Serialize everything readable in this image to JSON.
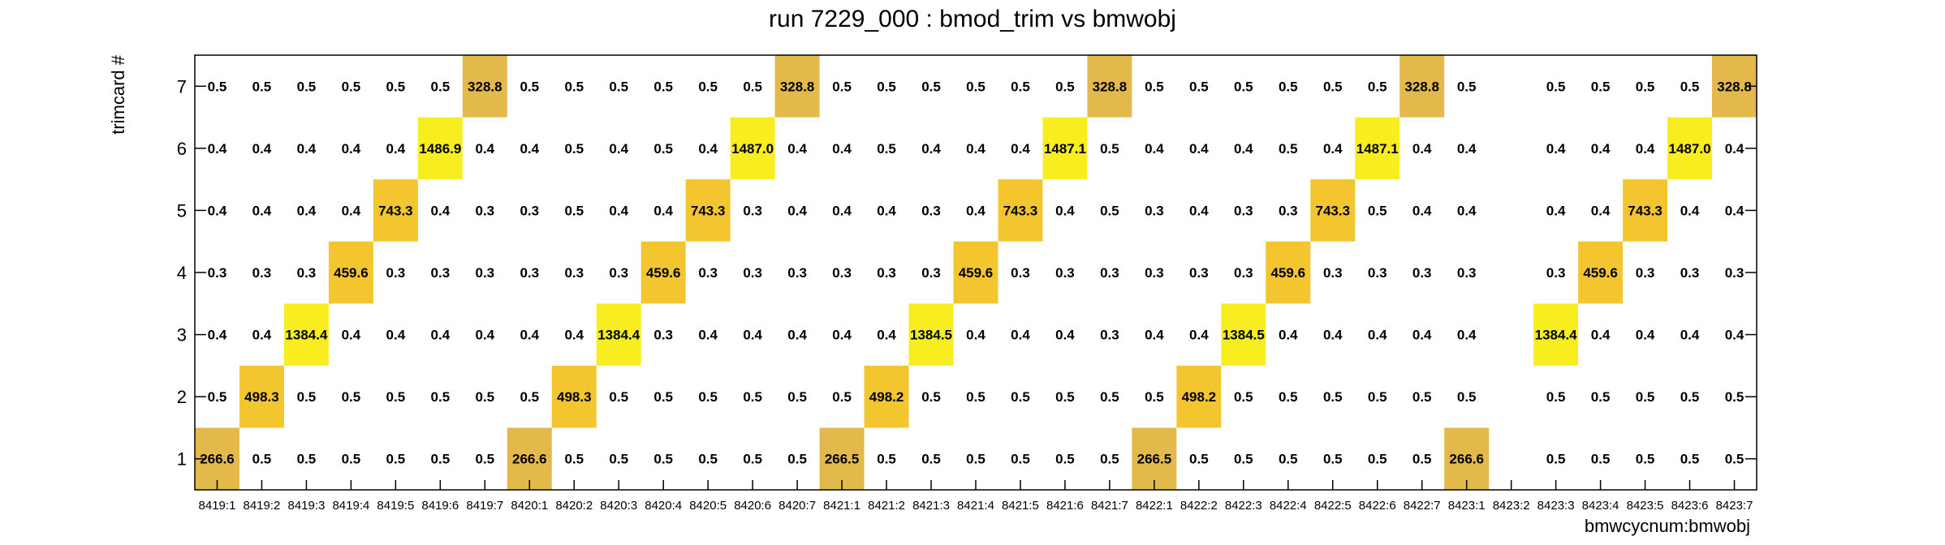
{
  "chart_data": {
    "type": "heatmap",
    "title": "run 7229_000 : bmod_trim vs bmwobj",
    "xlabel": "bmwcycnum:bmwobj",
    "ylabel": "trimcard #",
    "x_categories": [
      "8419:1",
      "8419:2",
      "8419:3",
      "8419:4",
      "8419:5",
      "8419:6",
      "8419:7",
      "8420:1",
      "8420:2",
      "8420:3",
      "8420:4",
      "8420:5",
      "8420:6",
      "8420:7",
      "8421:1",
      "8421:2",
      "8421:3",
      "8421:4",
      "8421:5",
      "8421:6",
      "8421:7",
      "8422:1",
      "8422:2",
      "8422:3",
      "8422:4",
      "8422:5",
      "8422:6",
      "8422:7",
      "8423:1",
      "8423:2",
      "8423:3",
      "8423:4",
      "8423:5",
      "8423:6",
      "8423:7"
    ],
    "y_categories": [
      "1",
      "2",
      "3",
      "4",
      "5",
      "6",
      "7"
    ],
    "grid": false,
    "colors": {
      "low": "#e2b94a",
      "mid": "#f3c52e",
      "high": "#f8ed1f",
      "frame": "#000000"
    },
    "values": [
      [
        "266.6",
        "0.5",
        "0.5",
        "0.5",
        "0.5",
        "0.5",
        "0.5",
        "266.6",
        "0.5",
        "0.5",
        "0.5",
        "0.5",
        "0.5",
        "0.5",
        "266.5",
        "0.5",
        "0.5",
        "0.5",
        "0.5",
        "0.5",
        "0.5",
        "266.5",
        "0.5",
        "0.5",
        "0.5",
        "0.5",
        "0.5",
        "0.5",
        "266.6",
        null,
        "0.5",
        "0.5",
        "0.5",
        "0.5",
        "0.5"
      ],
      [
        "0.5",
        "498.3",
        "0.5",
        "0.5",
        "0.5",
        "0.5",
        "0.5",
        "0.5",
        "498.3",
        "0.5",
        "0.5",
        "0.5",
        "0.5",
        "0.5",
        "0.5",
        "498.2",
        "0.5",
        "0.5",
        "0.5",
        "0.5",
        "0.5",
        "0.5",
        "498.2",
        "0.5",
        "0.5",
        "0.5",
        "0.5",
        "0.5",
        "0.5",
        null,
        "0.5",
        "0.5",
        "0.5",
        "0.5",
        "0.5"
      ],
      [
        "0.4",
        "0.4",
        "1384.4",
        "0.4",
        "0.4",
        "0.4",
        "0.4",
        "0.4",
        "0.4",
        "1384.4",
        "0.3",
        "0.4",
        "0.4",
        "0.4",
        "0.4",
        "0.4",
        "1384.5",
        "0.4",
        "0.4",
        "0.4",
        "0.3",
        "0.4",
        "0.4",
        "1384.5",
        "0.4",
        "0.4",
        "0.4",
        "0.4",
        "0.4",
        null,
        "1384.4",
        "0.4",
        "0.4",
        "0.4",
        "0.4"
      ],
      [
        "0.3",
        "0.3",
        "0.3",
        "459.6",
        "0.3",
        "0.3",
        "0.3",
        "0.3",
        "0.3",
        "0.3",
        "459.6",
        "0.3",
        "0.3",
        "0.3",
        "0.3",
        "0.3",
        "0.3",
        "459.6",
        "0.3",
        "0.3",
        "0.3",
        "0.3",
        "0.3",
        "0.3",
        "459.6",
        "0.3",
        "0.3",
        "0.3",
        "0.3",
        null,
        "0.3",
        "459.6",
        "0.3",
        "0.3",
        "0.3"
      ],
      [
        "0.4",
        "0.4",
        "0.4",
        "0.4",
        "743.3",
        "0.4",
        "0.3",
        "0.3",
        "0.5",
        "0.4",
        "0.4",
        "743.3",
        "0.3",
        "0.4",
        "0.4",
        "0.4",
        "0.3",
        "0.4",
        "743.3",
        "0.4",
        "0.5",
        "0.3",
        "0.4",
        "0.3",
        "0.3",
        "743.3",
        "0.5",
        "0.4",
        "0.4",
        null,
        "0.4",
        "0.4",
        "743.3",
        "0.4",
        "0.4"
      ],
      [
        "0.4",
        "0.4",
        "0.4",
        "0.4",
        "0.4",
        "1486.9",
        "0.4",
        "0.4",
        "0.5",
        "0.4",
        "0.5",
        "0.4",
        "1487.0",
        "0.4",
        "0.4",
        "0.5",
        "0.4",
        "0.4",
        "0.4",
        "1487.1",
        "0.5",
        "0.4",
        "0.4",
        "0.4",
        "0.5",
        "0.4",
        "1487.1",
        "0.4",
        "0.4",
        null,
        "0.4",
        "0.4",
        "0.4",
        "1487.0",
        "0.4"
      ],
      [
        "0.5",
        "0.5",
        "0.5",
        "0.5",
        "0.5",
        "0.5",
        "328.8",
        "0.5",
        "0.5",
        "0.5",
        "0.5",
        "0.5",
        "0.5",
        "328.8",
        "0.5",
        "0.5",
        "0.5",
        "0.5",
        "0.5",
        "0.5",
        "328.8",
        "0.5",
        "0.5",
        "0.5",
        "0.5",
        "0.5",
        "0.5",
        "328.8",
        "0.5",
        null,
        "0.5",
        "0.5",
        "0.5",
        "0.5",
        "328.8"
      ]
    ]
  }
}
